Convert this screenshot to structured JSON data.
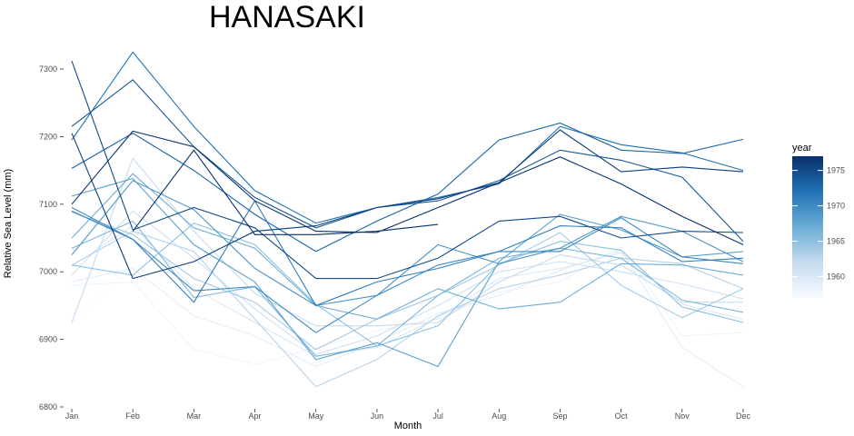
{
  "chart_data": {
    "type": "line",
    "title": "HANASAKI",
    "xlabel": "Month",
    "ylabel": "Relative Sea Level (mm)",
    "x": [
      "Jan",
      "Feb",
      "Mar",
      "Apr",
      "May",
      "Jun",
      "Jul",
      "Aug",
      "Sep",
      "Oct",
      "Nov",
      "Dec"
    ],
    "ylim": [
      6800,
      7300
    ],
    "yticks": [
      6800,
      6900,
      7000,
      7100,
      7200,
      7300
    ],
    "grid": false,
    "legend": {
      "title": "year",
      "placement": "right",
      "range": [
        1957,
        1977
      ],
      "ticks": [
        1960,
        1965,
        1970,
        1975
      ],
      "colormap": "Blues"
    },
    "series": [
      {
        "year": 1957,
        "values": [
          6925,
          7005,
          6952,
          6951,
          6920,
          6918,
          6940,
          6958,
          6968,
          6972,
          6968,
          6965
        ]
      },
      {
        "year": 1958,
        "values": [
          6980,
          6985,
          6885,
          6863,
          6887,
          6913,
          6930,
          6970,
          6985,
          7038,
          6905,
          6910
        ]
      },
      {
        "year": 1959,
        "values": [
          6985,
          7005,
          6935,
          6905,
          6860,
          6895,
          6938,
          6965,
          7002,
          7032,
          6888,
          6830
        ]
      },
      {
        "year": 1960,
        "values": [
          7008,
          7068,
          6975,
          6925,
          6875,
          6888,
          6932,
          6990,
          7005,
          7028,
          6952,
          6930
        ]
      },
      {
        "year": 1961,
        "values": [
          6995,
          7090,
          7020,
          6945,
          6878,
          6905,
          6950,
          7000,
          7015,
          7000,
          6982,
          6960
        ]
      },
      {
        "year": 1962,
        "values": [
          6925,
          7168,
          7060,
          6968,
          6920,
          6920,
          6925,
          6985,
          7025,
          7010,
          6955,
          6955
        ]
      },
      {
        "year": 1963,
        "values": [
          7010,
          7060,
          7030,
          6930,
          6830,
          6870,
          6935,
          6975,
          6995,
          7020,
          7012,
          6975
        ]
      },
      {
        "year": 1964,
        "values": [
          7088,
          7055,
          6990,
          6955,
          6885,
          6930,
          6965,
          7010,
          7058,
          6980,
          6932,
          6975
        ]
      },
      {
        "year": 1965,
        "values": [
          7010,
          6995,
          7072,
          7040,
          6952,
          6890,
          6920,
          7012,
          7045,
          7032,
          6948,
          6925
        ]
      },
      {
        "year": 1966,
        "values": [
          7035,
          7075,
          6962,
          6978,
          6875,
          6890,
          6965,
          7020,
          7035,
          7020,
          6958,
          6940
        ]
      },
      {
        "year": 1967,
        "values": [
          7050,
          7145,
          7065,
          7035,
          6950,
          6930,
          6975,
          6945,
          6955,
          7012,
          7010,
          6995
        ]
      },
      {
        "year": 1968,
        "values": [
          7112,
          7138,
          7040,
          6985,
          6870,
          6895,
          6860,
          7015,
          7085,
          7062,
          7022,
          7030
        ]
      },
      {
        "year": 1969,
        "values": [
          7025,
          7135,
          7092,
          7005,
          6950,
          6965,
          7040,
          7012,
          7035,
          7082,
          7060,
          7015
        ]
      },
      {
        "year": 1970,
        "values": [
          7095,
          7048,
          6972,
          6978,
          6910,
          6965,
          7010,
          7030,
          7030,
          7080,
          7022,
          7012
        ]
      },
      {
        "year": 1971,
        "values": [
          7090,
          7048,
          6955,
          7105,
          6950,
          6985,
          7005,
          7030,
          7068,
          7065,
          7015,
          7020
        ]
      },
      {
        "year": 1972,
        "values": [
          7195,
          7325,
          7215,
          7120,
          7072,
          7095,
          7110,
          7130,
          7215,
          7188,
          7176,
          7150
        ]
      },
      {
        "year": 1973,
        "values": [
          7153,
          7205,
          7150,
          7085,
          7030,
          7075,
          7115,
          7195,
          7220,
          7180,
          7175,
          7196
        ]
      },
      {
        "year": 1974,
        "values": [
          7215,
          7284,
          7185,
          7110,
          7065,
          7095,
          7105,
          7135,
          7180,
          7165,
          7140,
          7045
        ]
      },
      {
        "year": 1975,
        "values": [
          7312,
          7062,
          7095,
          7065,
          6990,
          6990,
          7020,
          7075,
          7082,
          7050,
          7060,
          7058
        ]
      },
      {
        "year": 1976,
        "values": [
          7205,
          6990,
          7015,
          7060,
          7068,
          7095,
          7108,
          7132,
          7210,
          7148,
          7155,
          7148
        ]
      },
      {
        "year": 1977,
        "values": [
          7100,
          7208,
          7185,
          7105,
          7060,
          7058,
          7095,
          7132,
          7170,
          7130,
          7082,
          7040
        ]
      },
      {
        "year": 1978,
        "values": [
          null,
          7060,
          7180,
          7055,
          7055,
          7060,
          7070,
          null,
          null,
          null,
          null,
          null
        ]
      }
    ]
  }
}
